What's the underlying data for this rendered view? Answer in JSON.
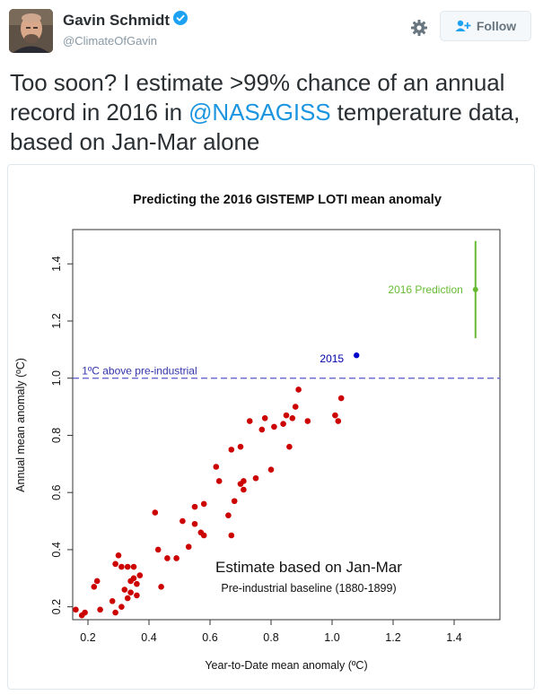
{
  "user": {
    "name": "Gavin Schmidt",
    "handle": "@ClimateOfGavin"
  },
  "actions": {
    "follow_label": "Follow"
  },
  "icons": {
    "verified": "verified-badge-icon",
    "gear": "gear-icon",
    "follow": "add-user-icon"
  },
  "colors": {
    "link": "#1b95e0",
    "verified": "#1da1f2",
    "points": "#cc0000",
    "point_2015": "#0000cc",
    "prediction": "#66bb33",
    "threshold": "#5555cc"
  },
  "tweet": {
    "text_before": "Too soon? I estimate >99% chance of an annual record in 2016 in ",
    "mention": "@NASAGISS",
    "text_after": " temperature data, based on Jan-Mar alone"
  },
  "chart_data": {
    "type": "scatter",
    "title": "Predicting the 2016 GISTEMP LOTI mean anomaly",
    "xlabel": "Year-to-Date mean anomaly (ºC)",
    "ylabel": "Annual mean anomaly (ºC)",
    "xlim": [
      0.15,
      1.55
    ],
    "ylim": [
      0.155,
      1.52
    ],
    "xticks": [
      "0.2",
      "0.4",
      "0.6",
      "0.8",
      "1.0",
      "1.2",
      "1.4"
    ],
    "yticks": [
      "0.2",
      "0.4",
      "0.6",
      "0.8",
      "1.0",
      "1.2",
      "1.4"
    ],
    "threshold": {
      "y": 1.0,
      "label": "1ºC above pre-industrial"
    },
    "label_2015": "2015",
    "point_2015": [
      1.08,
      1.08
    ],
    "prediction": {
      "x": 1.47,
      "y": 1.31,
      "low": 1.14,
      "high": 1.48,
      "label": "2016 Prediction"
    },
    "annotation_main": "Estimate based on Jan-Mar",
    "annotation_sub": "Pre-industrial baseline (1880-1899)",
    "points": [
      [
        0.16,
        0.19
      ],
      [
        0.18,
        0.17
      ],
      [
        0.19,
        0.18
      ],
      [
        0.22,
        0.27
      ],
      [
        0.23,
        0.29
      ],
      [
        0.24,
        0.19
      ],
      [
        0.28,
        0.22
      ],
      [
        0.29,
        0.18
      ],
      [
        0.29,
        0.35
      ],
      [
        0.3,
        0.38
      ],
      [
        0.31,
        0.34
      ],
      [
        0.31,
        0.2
      ],
      [
        0.32,
        0.26
      ],
      [
        0.33,
        0.34
      ],
      [
        0.33,
        0.23
      ],
      [
        0.34,
        0.29
      ],
      [
        0.34,
        0.25
      ],
      [
        0.35,
        0.34
      ],
      [
        0.35,
        0.3
      ],
      [
        0.36,
        0.28
      ],
      [
        0.36,
        0.24
      ],
      [
        0.37,
        0.31
      ],
      [
        0.42,
        0.53
      ],
      [
        0.43,
        0.4
      ],
      [
        0.44,
        0.27
      ],
      [
        0.46,
        0.37
      ],
      [
        0.49,
        0.37
      ],
      [
        0.51,
        0.5
      ],
      [
        0.53,
        0.41
      ],
      [
        0.55,
        0.55
      ],
      [
        0.55,
        0.49
      ],
      [
        0.57,
        0.46
      ],
      [
        0.58,
        0.45
      ],
      [
        0.58,
        0.56
      ],
      [
        0.62,
        0.69
      ],
      [
        0.63,
        0.64
      ],
      [
        0.66,
        0.52
      ],
      [
        0.67,
        0.45
      ],
      [
        0.67,
        0.75
      ],
      [
        0.68,
        0.57
      ],
      [
        0.7,
        0.76
      ],
      [
        0.7,
        0.63
      ],
      [
        0.71,
        0.61
      ],
      [
        0.71,
        0.64
      ],
      [
        0.73,
        0.85
      ],
      [
        0.75,
        0.65
      ],
      [
        0.77,
        0.82
      ],
      [
        0.78,
        0.86
      ],
      [
        0.8,
        0.68
      ],
      [
        0.81,
        0.83
      ],
      [
        0.84,
        0.84
      ],
      [
        0.85,
        0.87
      ],
      [
        0.86,
        0.76
      ],
      [
        0.87,
        0.86
      ],
      [
        0.88,
        0.9
      ],
      [
        0.89,
        0.96
      ],
      [
        0.92,
        0.85
      ],
      [
        1.01,
        0.87
      ],
      [
        1.02,
        0.85
      ],
      [
        1.03,
        0.93
      ]
    ]
  }
}
